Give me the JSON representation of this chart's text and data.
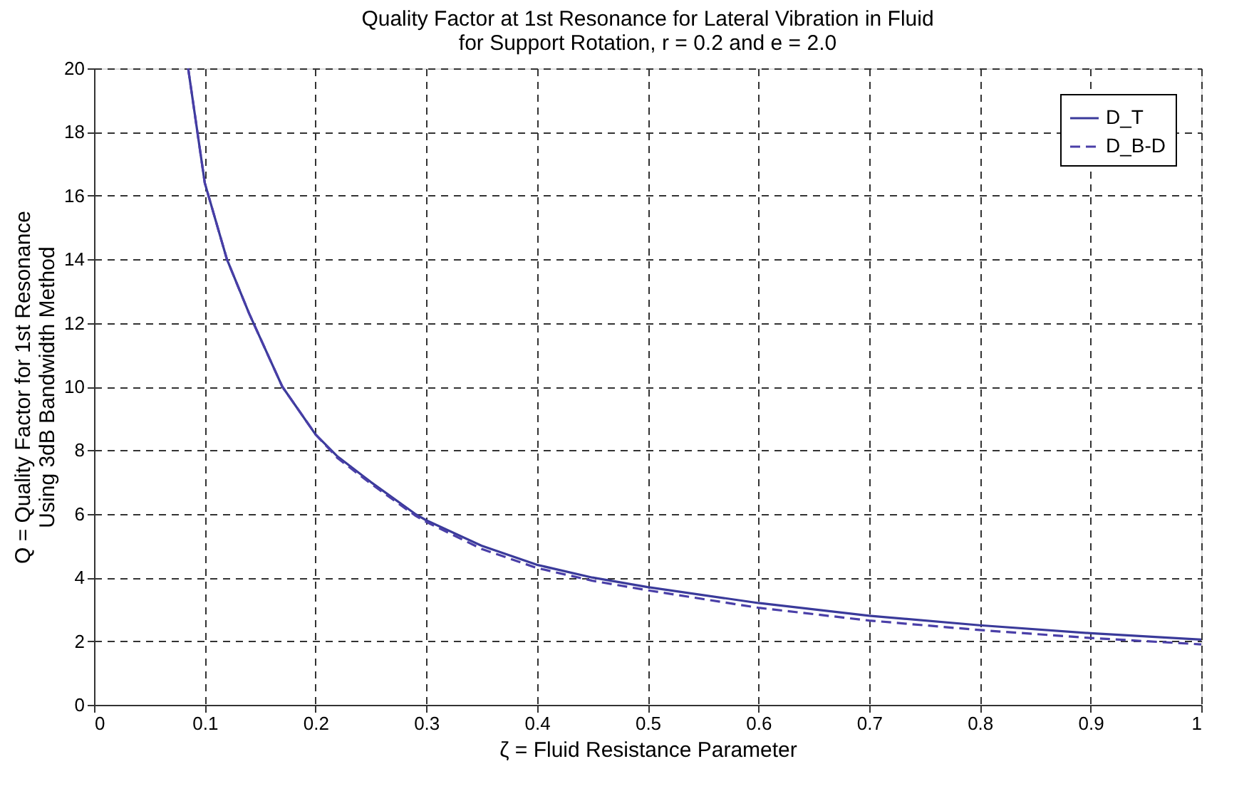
{
  "chart_data": {
    "type": "line",
    "title": "Quality Factor at 1st Resonance for Lateral Vibration in Fluid",
    "subtitle": "for Support Rotation, r = 0.2 and e = 2.0",
    "xlabel": "ζ = Fluid Resistance Parameter",
    "ylabel": "Q = Quality Factor for 1st Resonance\nUsing 3dB Bandwidth Method",
    "x": [
      0.085,
      0.1,
      0.12,
      0.14,
      0.17,
      0.2,
      0.22,
      0.25,
      0.29,
      0.3,
      0.35,
      0.4,
      0.45,
      0.5,
      0.6,
      0.7,
      0.8,
      0.9,
      1.0
    ],
    "series": [
      {
        "name": "D_T",
        "color": "#3a3a9a",
        "line_style": "solid",
        "values": [
          20,
          16.4,
          14,
          12.3,
          10,
          8.5,
          7.8,
          7.0,
          6.0,
          5.8,
          5.0,
          4.4,
          4.0,
          3.7,
          3.2,
          2.8,
          2.5,
          2.25,
          2.05
        ]
      },
      {
        "name": "D_B-D",
        "color": "#4a3fa8",
        "line_style": "dashed",
        "values": [
          20,
          16.4,
          14,
          12.3,
          10,
          8.5,
          7.75,
          6.95,
          5.95,
          5.75,
          4.9,
          4.3,
          3.9,
          3.6,
          3.05,
          2.65,
          2.35,
          2.1,
          1.9
        ]
      }
    ],
    "xlim": [
      0,
      1
    ],
    "xticks": [
      0,
      0.1,
      0.2,
      0.3,
      0.4,
      0.5,
      0.6,
      0.7,
      0.8,
      0.9,
      1
    ],
    "ylim": [
      0,
      20
    ],
    "yticks": [
      0,
      2,
      4,
      6,
      8,
      10,
      12,
      14,
      16,
      18,
      20
    ],
    "grid": true,
    "legend": "top right",
    "marker": "none"
  }
}
